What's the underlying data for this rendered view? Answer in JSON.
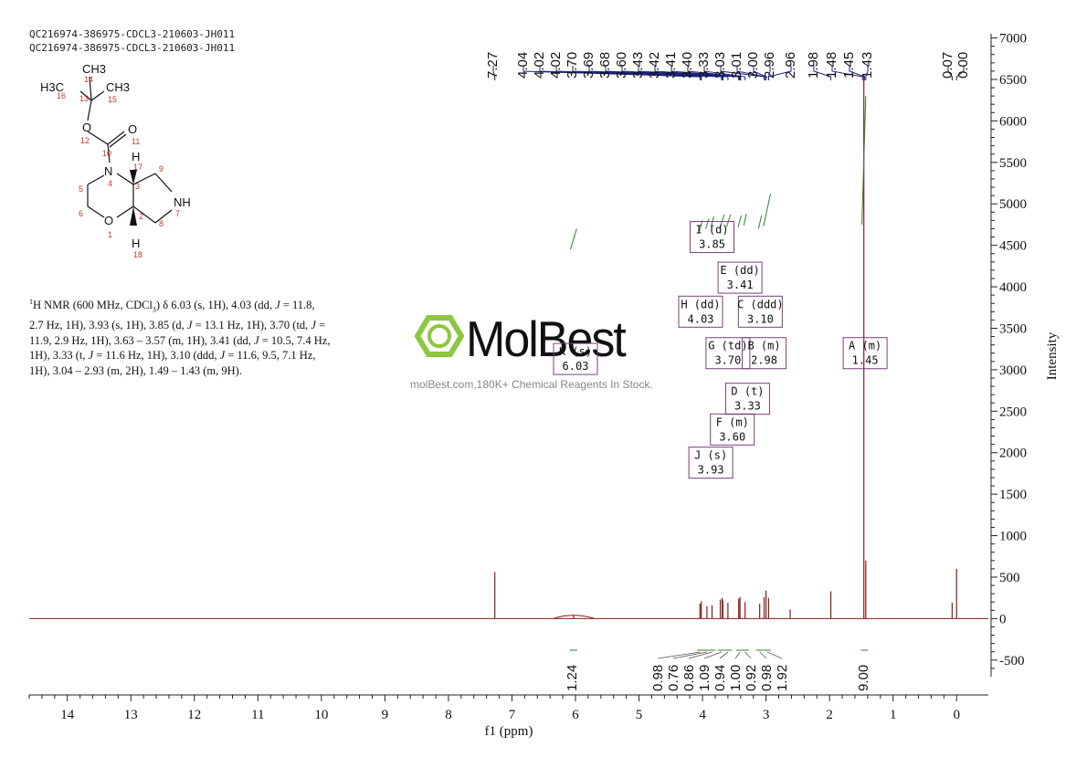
{
  "sample_lines": [
    "QC216974-386975-CDCL3-210603-JH011",
    "QC216974-386975-CDCL3-210603-JH011"
  ],
  "description_html": "<sup>1</sup>H NMR (600 MHz, CDCl<sub style=\"font-size:8px\">3</sub>) δ 6.03 (s, 1H), 4.03 (dd, <i>J</i> = 11.8, 2.7 Hz, 1H), 3.93 (s, 1H), 3.85 (d, <i>J</i> = 13.1 Hz, 1H), 3.70 (td, <i>J</i> = 11.9, 2.9 Hz, 1H), 3.63 – 3.57 (m, 1H), 3.41 (dd, <i>J</i> = 10.5, 7.4 Hz, 1H), 3.33 (t, <i>J</i> = 11.6 Hz, 1H), 3.10 (ddd, <i>J</i> = 11.6, 9.5, 7.1 Hz, 1H), 3.04 – 2.93 (m, 2H), 1.49 – 1.43 (m, 9H).",
  "logo": {
    "name": "MolBest",
    "tagline": "molBest.com,180K+ Chemical Reagents In Stock."
  },
  "molecule": {
    "atoms": [
      {
        "label": "CH3",
        "num": "14"
      },
      {
        "label": "H3C",
        "num": "16"
      },
      {
        "label": "CH3",
        "num": "15"
      },
      {
        "label": "",
        "num": "13"
      },
      {
        "label": "O",
        "num": "12"
      },
      {
        "label": "",
        "num": "10"
      },
      {
        "label": "O",
        "num": "11"
      },
      {
        "label": "N",
        "num": "4"
      },
      {
        "label": "H",
        "num": "17"
      },
      {
        "label": "",
        "num": "3"
      },
      {
        "label": "",
        "num": "9"
      },
      {
        "label": "",
        "num": "5"
      },
      {
        "label": "NH",
        "num": "7"
      },
      {
        "label": "",
        "num": "6"
      },
      {
        "label": "",
        "num": "2"
      },
      {
        "label": "",
        "num": "8"
      },
      {
        "label": "O",
        "num": "1"
      },
      {
        "label": "H",
        "num": "18"
      }
    ]
  },
  "chart_data": {
    "type": "line",
    "xlabel": "f1 (ppm)",
    "ylabel": "Intensity",
    "xlim": [
      14.6,
      -0.5
    ],
    "ylim": [
      -700,
      7050
    ],
    "xticks": [
      14,
      13,
      12,
      11,
      10,
      9,
      8,
      7,
      6,
      5,
      4,
      3,
      2,
      1,
      0
    ],
    "yticks": [
      7000,
      6500,
      6000,
      5500,
      5000,
      4500,
      4000,
      3500,
      3000,
      2500,
      2000,
      1500,
      1000,
      500,
      0,
      -500
    ],
    "peak_labels": [
      "7.27",
      "4.04",
      "4.02",
      "4.02",
      "3.70",
      "3.69",
      "3.68",
      "3.60",
      "3.43",
      "3.42",
      "3.41",
      "3.40",
      "3.33",
      "3.03",
      "3.01",
      "3.00",
      "2.96",
      "2.96",
      "1.98",
      "1.48",
      "1.45",
      "1.43",
      "0.07",
      "0.00"
    ],
    "peaks": [
      {
        "x": 7.27,
        "y": 560
      },
      {
        "x": 6.03,
        "y": 40
      },
      {
        "x": 4.04,
        "y": 180
      },
      {
        "x": 4.02,
        "y": 210
      },
      {
        "x": 3.93,
        "y": 150
      },
      {
        "x": 3.85,
        "y": 160
      },
      {
        "x": 3.72,
        "y": 230
      },
      {
        "x": 3.69,
        "y": 250
      },
      {
        "x": 3.68,
        "y": 220
      },
      {
        "x": 3.6,
        "y": 190
      },
      {
        "x": 3.43,
        "y": 240
      },
      {
        "x": 3.41,
        "y": 260
      },
      {
        "x": 3.33,
        "y": 200
      },
      {
        "x": 3.1,
        "y": 180
      },
      {
        "x": 3.03,
        "y": 260
      },
      {
        "x": 3.0,
        "y": 340
      },
      {
        "x": 2.96,
        "y": 250
      },
      {
        "x": 2.62,
        "y": 110
      },
      {
        "x": 1.98,
        "y": 330
      },
      {
        "x": 1.46,
        "y": 6550
      },
      {
        "x": 1.43,
        "y": 700
      },
      {
        "x": 0.07,
        "y": 190
      },
      {
        "x": 0.0,
        "y": 600
      }
    ],
    "integral_curves": [
      {
        "x1": 6.08,
        "x2": 5.98,
        "y1": 4450,
        "y2": 4700
      },
      {
        "x1": 4.06,
        "x2": 4.0,
        "y1": 4650,
        "y2": 4800
      },
      {
        "x1": 3.95,
        "x2": 3.9,
        "y1": 4700,
        "y2": 4820
      },
      {
        "x1": 3.87,
        "x2": 3.82,
        "y1": 4720,
        "y2": 4850
      },
      {
        "x1": 3.73,
        "x2": 3.66,
        "y1": 4700,
        "y2": 4870
      },
      {
        "x1": 3.62,
        "x2": 3.56,
        "y1": 4720,
        "y2": 4870
      },
      {
        "x1": 3.44,
        "x2": 3.39,
        "y1": 4720,
        "y2": 4860
      },
      {
        "x1": 3.35,
        "x2": 3.31,
        "y1": 4740,
        "y2": 4880
      },
      {
        "x1": 3.12,
        "x2": 3.07,
        "y1": 4700,
        "y2": 4860
      },
      {
        "x1": 3.04,
        "x2": 2.93,
        "y1": 4730,
        "y2": 5120
      },
      {
        "x1": 1.49,
        "x2": 1.43,
        "y1": 4750,
        "y2": 6300
      }
    ],
    "multiplets": [
      {
        "id": "I",
        "type": "d",
        "shift": "3.85",
        "cx": 3.85,
        "cy": 4600
      },
      {
        "id": "E",
        "type": "dd",
        "shift": "3.41",
        "cx": 3.41,
        "cy": 4110
      },
      {
        "id": "H",
        "type": "dd",
        "shift": "4.03",
        "cx": 4.03,
        "cy": 3700
      },
      {
        "id": "C",
        "type": "ddd",
        "shift": "3.10",
        "cx": 3.09,
        "cy": 3700
      },
      {
        "id": "G",
        "type": "td",
        "shift": "3.70",
        "cx": 3.6,
        "cy": 3200
      },
      {
        "id": "B",
        "type": "m",
        "shift": "2.98",
        "cx": 3.03,
        "cy": 3200
      },
      {
        "id": "A",
        "type": "m",
        "shift": "1.45",
        "cx": 1.44,
        "cy": 3200
      },
      {
        "id": "K",
        "type": "s",
        "shift": "6.03",
        "cx": 6.0,
        "cy": 3130
      },
      {
        "id": "D",
        "type": "t",
        "shift": "3.33",
        "cx": 3.29,
        "cy": 2650
      },
      {
        "id": "F",
        "type": "m",
        "shift": "3.60",
        "cx": 3.53,
        "cy": 2280
      },
      {
        "id": "J",
        "type": "s",
        "shift": "3.93",
        "cx": 3.87,
        "cy": 1880
      }
    ],
    "integrals": [
      {
        "value": "1.24",
        "x": 6.03
      },
      {
        "value": "0.98",
        "x": 4.03
      },
      {
        "value": "0.76",
        "x": 3.93
      },
      {
        "value": "0.86",
        "x": 3.85
      },
      {
        "value": "1.09",
        "x": 3.7
      },
      {
        "value": "0.94",
        "x": 3.6
      },
      {
        "value": "1.00",
        "x": 3.41
      },
      {
        "value": "0.92",
        "x": 3.33
      },
      {
        "value": "0.98",
        "x": 3.1
      },
      {
        "value": "1.92",
        "x": 2.98
      },
      {
        "value": "9.00",
        "x": 1.45
      }
    ],
    "colors": {
      "spectrum": "#8b1a1a",
      "peak_label_lines": "#1a237e",
      "integral": "#2e7d32",
      "multiplet_box": "#7b3f7b",
      "axis": "#222222"
    }
  }
}
